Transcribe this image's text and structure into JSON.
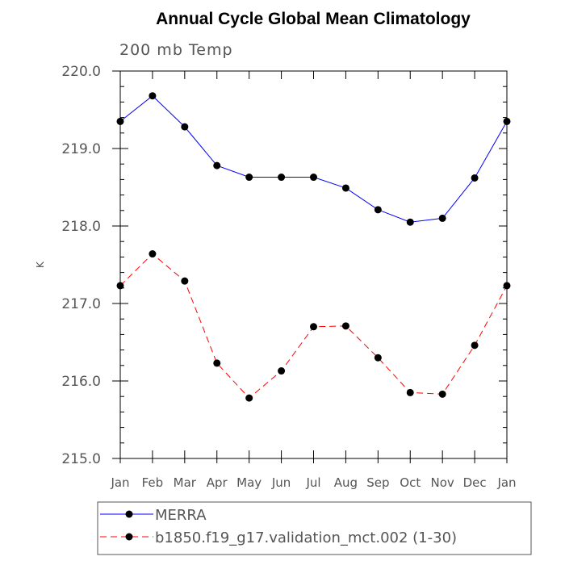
{
  "chart_data": {
    "type": "line",
    "title": "Annual Cycle Global Mean Climatology",
    "subtitle": "200 mb Temp",
    "xlabel": "",
    "ylabel": "K",
    "categories": [
      "Jan",
      "Feb",
      "Mar",
      "Apr",
      "May",
      "Jun",
      "Jul",
      "Aug",
      "Sep",
      "Oct",
      "Nov",
      "Dec",
      "Jan"
    ],
    "ylim": [
      215.0,
      220.0
    ],
    "yticks": [
      "215.0",
      "216.0",
      "217.0",
      "218.0",
      "219.0",
      "220.0"
    ],
    "legend_position": "bottom",
    "series": [
      {
        "name": "MERRA",
        "color": "#0000ff",
        "dash": "solid",
        "values": [
          219.35,
          219.68,
          219.28,
          218.78,
          218.63,
          218.63,
          218.63,
          218.49,
          218.21,
          218.05,
          218.1,
          218.62,
          219.35
        ]
      },
      {
        "name": "b1850.f19_g17.validation_mct.002 (1-30)",
        "color": "#ff0000",
        "dash": "dashed",
        "values": [
          217.23,
          217.64,
          217.29,
          216.23,
          215.78,
          216.13,
          216.7,
          216.71,
          216.3,
          215.85,
          215.83,
          216.46,
          217.23
        ]
      }
    ]
  }
}
